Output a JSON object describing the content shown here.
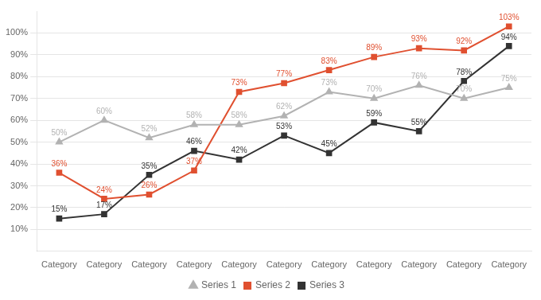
{
  "chart_data": {
    "type": "line",
    "categories": [
      "Category",
      "Category",
      "Category",
      "Category",
      "Category",
      "Category",
      "Category",
      "Category",
      "Category",
      "Category",
      "Category"
    ],
    "series": [
      {
        "name": "Series 1",
        "color": "#b2b2b2",
        "marker": "triangle",
        "values": [
          50,
          60,
          52,
          58,
          58,
          62,
          73,
          70,
          76,
          70,
          75
        ],
        "value_labels": [
          "50%",
          "60%",
          "52%",
          "58%",
          "58%",
          "62%",
          "73%",
          "70%",
          "76%",
          "70%",
          "75%"
        ]
      },
      {
        "name": "Series 2",
        "color": "#e05030",
        "marker": "square",
        "values": [
          36,
          24,
          26,
          37,
          73,
          77,
          83,
          89,
          93,
          92,
          103
        ],
        "value_labels": [
          "36%",
          "24%",
          "26%",
          "37%",
          "73%",
          "77%",
          "83%",
          "89%",
          "93%",
          "92%",
          "103%"
        ]
      },
      {
        "name": "Series 3",
        "color": "#333333",
        "marker": "square",
        "values": [
          15,
          17,
          35,
          46,
          42,
          53,
          45,
          59,
          55,
          78,
          94
        ],
        "value_labels": [
          "15%",
          "17%",
          "35%",
          "46%",
          "42%",
          "53%",
          "45%",
          "59%",
          "55%",
          "78%",
          "94%"
        ]
      }
    ],
    "ylim": [
      0,
      110
    ],
    "yticks": [
      {
        "value": 10,
        "label": "10%"
      },
      {
        "value": 20,
        "label": "20%"
      },
      {
        "value": 30,
        "label": "30%"
      },
      {
        "value": 40,
        "label": "40%"
      },
      {
        "value": 50,
        "label": "50%"
      },
      {
        "value": 60,
        "label": "60%"
      },
      {
        "value": 70,
        "label": "70%"
      },
      {
        "value": 80,
        "label": "80%"
      },
      {
        "value": 90,
        "label": "90%"
      },
      {
        "value": 100,
        "label": "100%"
      }
    ],
    "grid": "y",
    "legend": "bottom",
    "data_labels": true
  }
}
